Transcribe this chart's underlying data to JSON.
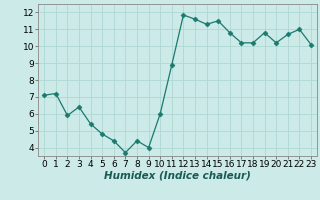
{
  "x": [
    0,
    1,
    2,
    3,
    4,
    5,
    6,
    7,
    8,
    9,
    10,
    11,
    12,
    13,
    14,
    15,
    16,
    17,
    18,
    19,
    20,
    21,
    22,
    23
  ],
  "y": [
    7.1,
    7.2,
    5.9,
    6.4,
    5.4,
    4.8,
    4.4,
    3.7,
    4.4,
    4.0,
    6.0,
    8.9,
    11.85,
    11.6,
    11.3,
    11.5,
    10.8,
    10.2,
    10.2,
    10.8,
    10.2,
    10.7,
    11.0,
    10.1
  ],
  "line_color": "#1a7a6e",
  "marker": "D",
  "marker_size": 2.5,
  "bg_color": "#cceae7",
  "grid_color": "#b0d8d4",
  "xlabel": "Humidex (Indice chaleur)",
  "ylim": [
    3.5,
    12.5
  ],
  "yticks": [
    4,
    5,
    6,
    7,
    8,
    9,
    10,
    11,
    12
  ],
  "xticks": [
    0,
    1,
    2,
    3,
    4,
    5,
    6,
    7,
    8,
    9,
    10,
    11,
    12,
    13,
    14,
    15,
    16,
    17,
    18,
    19,
    20,
    21,
    22,
    23
  ],
  "xlabel_fontsize": 7.5,
  "tick_fontsize": 6.5
}
